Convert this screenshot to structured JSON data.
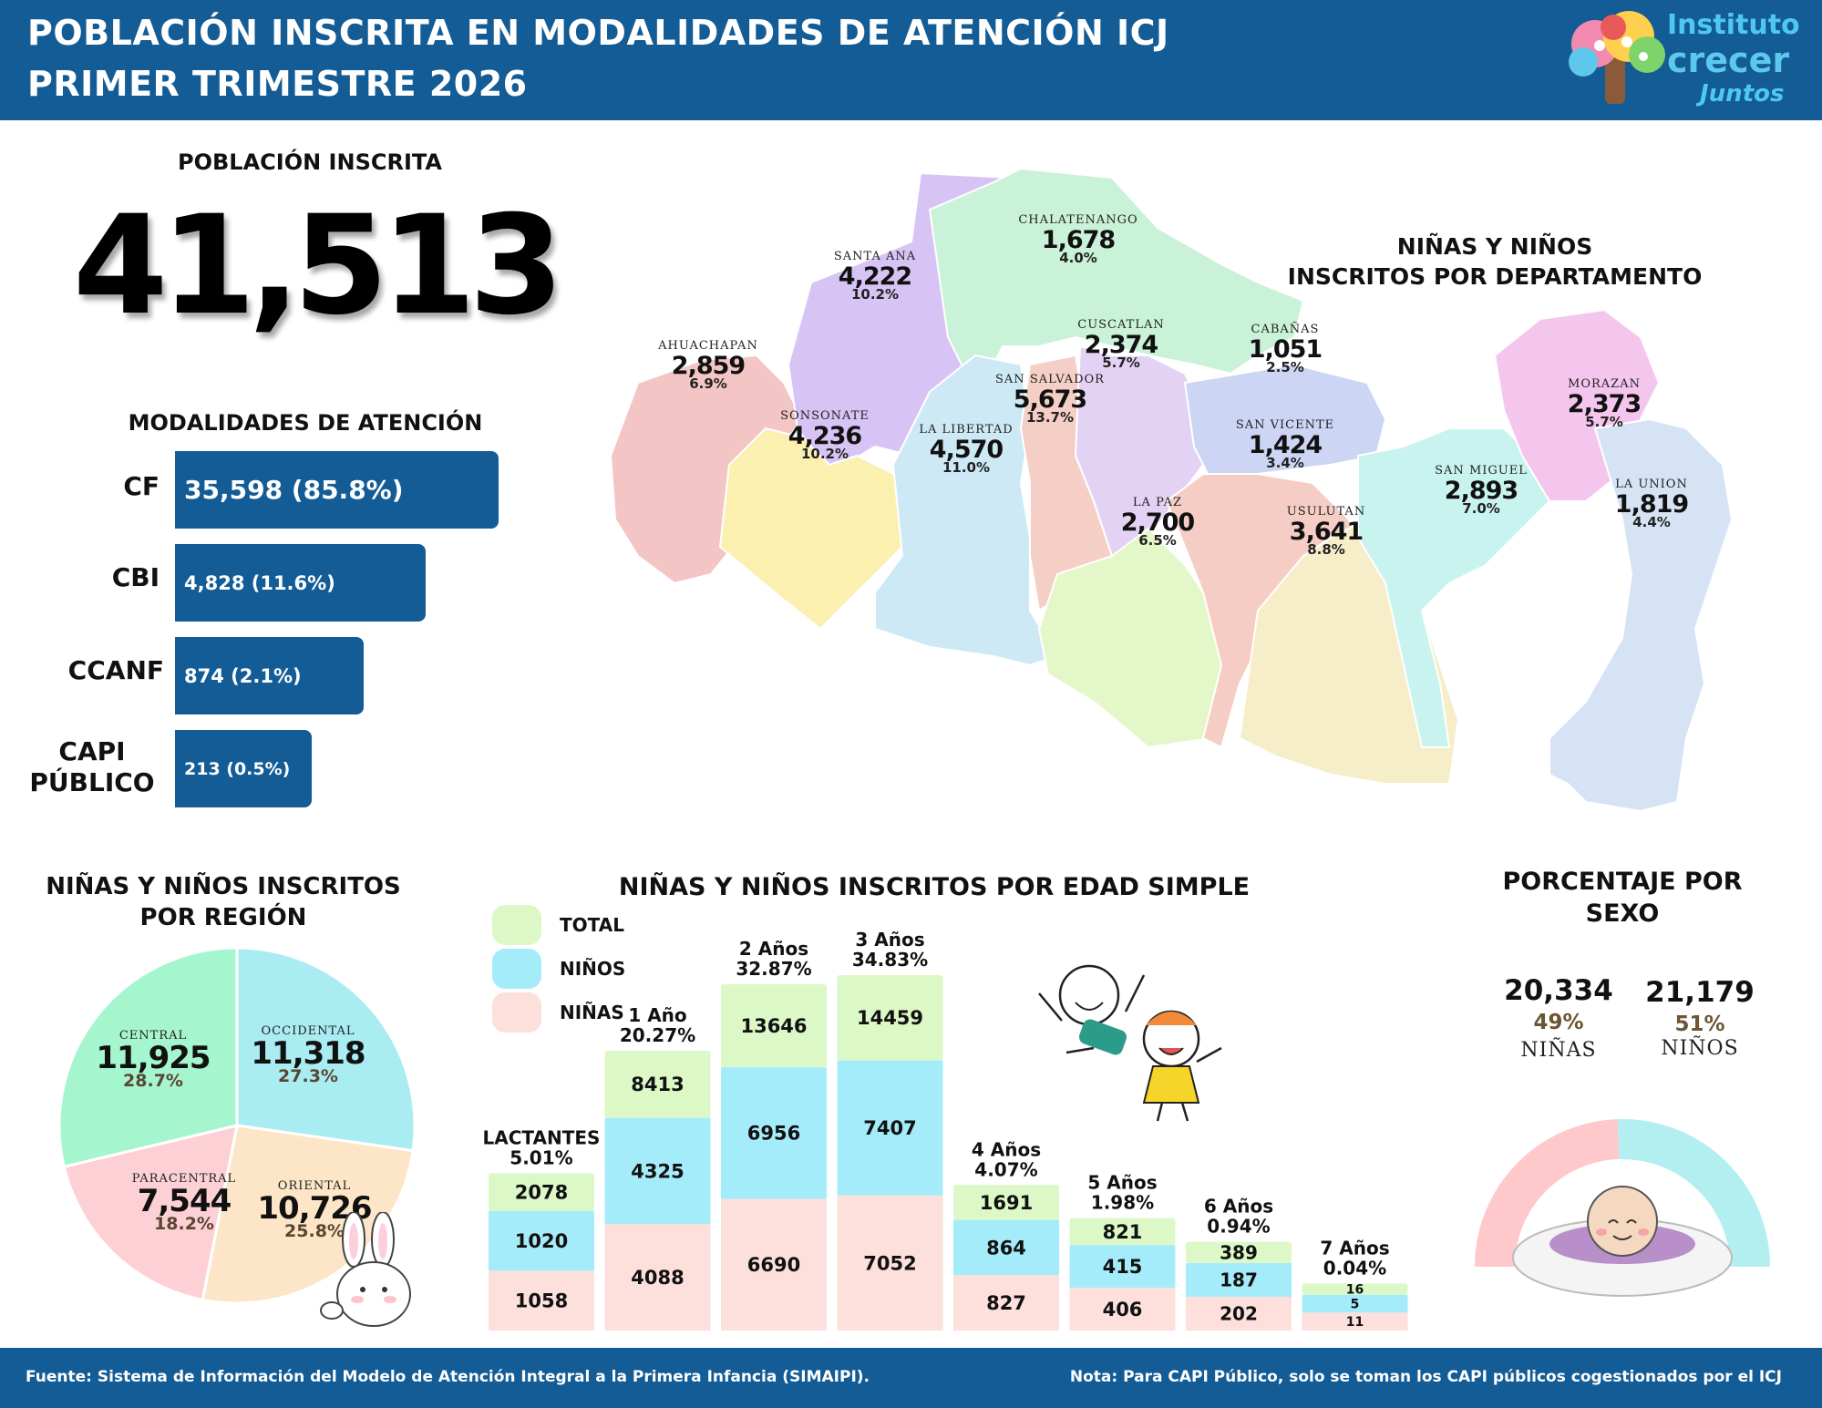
{
  "header": {
    "title_line1": "POBLACIÓN INSCRITA EN MODALIDADES DE ATENCIÓN ICJ",
    "title_line2": "PRIMER TRIMESTRE 2026",
    "logo_line1": "Instituto",
    "logo_line2": "crecer",
    "logo_line3": "Juntos"
  },
  "total": {
    "title": "POBLACIÓN INSCRITA",
    "value": "41,513"
  },
  "modalities": {
    "title": "MODALIDADES DE ATENCIÓN",
    "items": [
      {
        "label": "CF",
        "text": "35,598 (85.8%)",
        "value": 35598,
        "pct": 85.8
      },
      {
        "label": "CBI",
        "text": "4,828 (11.6%)",
        "value": 4828,
        "pct": 11.6
      },
      {
        "label": "CCANF",
        "text": "874 (2.1%)",
        "value": 874,
        "pct": 2.1
      },
      {
        "label": "CAPI PÚBLICO",
        "label_l1": "CAPI",
        "label_l2": "PÚBLICO",
        "text": "213 (0.5%)",
        "value": 213,
        "pct": 0.5
      }
    ],
    "color": "#135c96"
  },
  "map": {
    "title_line1": "NIÑAS Y NIÑOS",
    "title_line2": "INSCRITOS POR DEPARTAMENTO",
    "departments": [
      {
        "name": "AHUACHAPAN",
        "value": "2,859",
        "pct": "6.9%",
        "color": "#f4c5c5"
      },
      {
        "name": "SANTA ANA",
        "value": "4,222",
        "pct": "10.2%",
        "color": "#d7c4f5"
      },
      {
        "name": "SONSONATE",
        "value": "4,236",
        "pct": "10.2%",
        "color": "#fbf0b0"
      },
      {
        "name": "CHALATENANGO",
        "value": "1,678",
        "pct": "4.0%",
        "color": "#c9f2d8"
      },
      {
        "name": "LA LIBERTAD",
        "value": "4,570",
        "pct": "11.0%",
        "color": "#cde9f5"
      },
      {
        "name": "SAN SALVADOR",
        "value": "5,673",
        "pct": "13.7%",
        "color": "#f5cfc5"
      },
      {
        "name": "CUSCATLAN",
        "value": "2,374",
        "pct": "5.7%",
        "color": "#e4d2f5"
      },
      {
        "name": "CABAÑAS",
        "value": "1,051",
        "pct": "2.5%",
        "color": "#cdd5f5"
      },
      {
        "name": "LA PAZ",
        "value": "2,700",
        "pct": "6.5%",
        "color": "#e4f7c9"
      },
      {
        "name": "SAN VICENTE",
        "value": "1,424",
        "pct": "3.4%",
        "color": "#f5cdc5"
      },
      {
        "name": "USULUTAN",
        "value": "3,641",
        "pct": "8.8%",
        "color": "#f6eec8"
      },
      {
        "name": "SAN MIGUEL",
        "value": "2,893",
        "pct": "7.0%",
        "color": "#c9f3ee"
      },
      {
        "name": "MORAZAN",
        "value": "2,373",
        "pct": "5.7%",
        "color": "#f4c6ee"
      },
      {
        "name": "LA UNION",
        "value": "1,819",
        "pct": "4.4%",
        "color": "#d5e3f5"
      }
    ]
  },
  "region": {
    "title_line1": "NIÑAS Y NIÑOS INSCRITOS",
    "title_line2": "POR REGIÓN"
  },
  "age": {
    "title": "NIÑAS Y NIÑOS INSCRITOS POR EDAD SIMPLE",
    "legend": [
      {
        "label": "TOTAL",
        "color": "#dcf8c6"
      },
      {
        "label": "NIÑOS",
        "color": "#a5ecfa"
      },
      {
        "label": "NIÑAS",
        "color": "#fde0dc"
      }
    ]
  },
  "sex": {
    "title_line1": "PORCENTAJE POR",
    "title_line2": "SEXO",
    "girls": {
      "value": "20,334",
      "pct": "49%",
      "label": "NIÑAS",
      "color": "#ffc9cc"
    },
    "boys": {
      "value": "21,179",
      "pct": "51%",
      "label": "NIÑOS",
      "color": "#b3eef0"
    }
  },
  "footer": {
    "source": "Fuente: Sistema de Información del Modelo de Atención Integral a la Primera Infancia (SIMAIPI).",
    "note": "Nota: Para CAPI Público, solo se toman los CAPI públicos cogestionados por el ICJ"
  },
  "chart_data": [
    {
      "type": "bar",
      "title": "MODALIDADES DE ATENCIÓN",
      "categories": [
        "CF",
        "CBI",
        "CCANF",
        "CAPI PÚBLICO"
      ],
      "values": [
        35598,
        4828,
        874,
        213
      ],
      "labels": [
        "35,598 (85.8%)",
        "4,828 (11.6%)",
        "874 (2.1%)",
        "213 (0.5%)"
      ]
    },
    {
      "type": "pie",
      "title": "NIÑAS Y NIÑOS INSCRITOS POR REGIÓN",
      "slices": [
        {
          "name": "OCCIDENTAL",
          "value": 11318,
          "label": "11,318",
          "pct_label": "27.3%",
          "pct": 27.3,
          "color": "#a9ecf2"
        },
        {
          "name": "ORIENTAL",
          "value": 10726,
          "label": "10,726",
          "pct_label": "25.8%",
          "pct": 25.8,
          "color": "#fde6c8"
        },
        {
          "name": "PARACENTRAL",
          "value": 7544,
          "label": "7,544",
          "pct_label": "18.2%",
          "pct": 18.2,
          "color": "#fdd0d5"
        },
        {
          "name": "CENTRAL",
          "value": 11925,
          "label": "11,925",
          "pct_label": "28.7%",
          "pct": 28.7,
          "color": "#a5f5cf"
        }
      ]
    },
    {
      "type": "bar",
      "title": "NIÑAS Y NIÑOS INSCRITOS POR EDAD SIMPLE",
      "categories": [
        "LACTANTES",
        "1 Año",
        "2 Años",
        "3 Años",
        "4 Años",
        "5 Años",
        "6 Años",
        "7 Años"
      ],
      "category_pct": [
        "5.01%",
        "20.27%",
        "32.87%",
        "34.83%",
        "4.07%",
        "1.98%",
        "0.94%",
        "0.04%"
      ],
      "series": [
        {
          "name": "TOTAL",
          "values": [
            2078,
            8413,
            13646,
            14459,
            1691,
            821,
            389,
            16
          ]
        },
        {
          "name": "NIÑOS",
          "values": [
            1020,
            4325,
            6956,
            7407,
            864,
            415,
            187,
            5
          ]
        },
        {
          "name": "NIÑAS",
          "values": [
            1058,
            4088,
            6690,
            7052,
            827,
            406,
            202,
            11
          ]
        }
      ]
    },
    {
      "type": "pie",
      "title": "PORCENTAJE POR SEXO",
      "slices": [
        {
          "name": "NIÑAS",
          "value": 20334,
          "pct": 49
        },
        {
          "name": "NIÑOS",
          "value": 21179,
          "pct": 51
        }
      ]
    }
  ]
}
